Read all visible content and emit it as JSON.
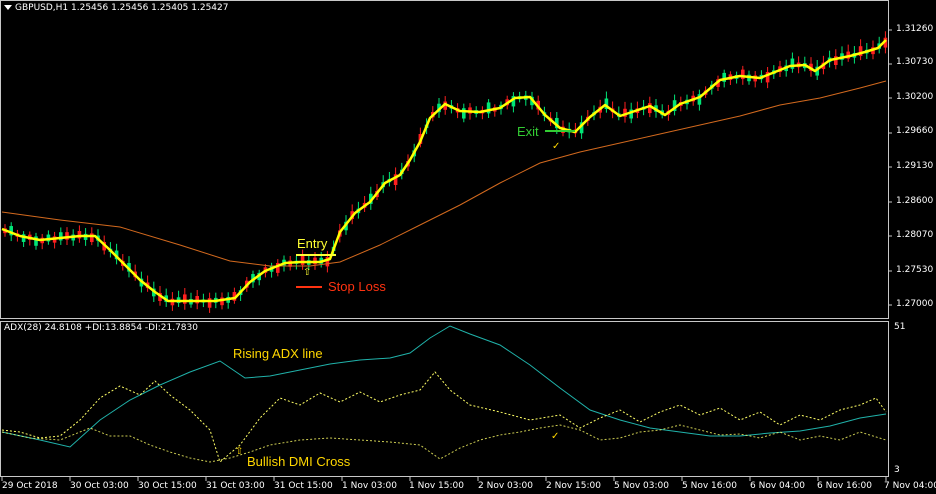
{
  "main_chart": {
    "title": "GBPUSD,H1  1.25456 1.25456 1.25405 1.25427",
    "price_labels": [
      "1.31260",
      "1.30730",
      "1.30200",
      "1.29660",
      "1.29130",
      "1.28600",
      "1.28070",
      "1.27530",
      "1.27000"
    ],
    "annotations": {
      "entry": "Entry",
      "stop_loss": "Stop Loss",
      "exit": "Exit",
      "up_arrow": "⇧",
      "checkmark": "✓"
    },
    "colors": {
      "candle_up": "#00e676",
      "candle_down": "#ff1f1f",
      "signal_line": "#ffff00",
      "slow_ma": "#d2691e",
      "entry": "#ffff33",
      "stop_loss": "#ff3311",
      "exit": "#33cc33"
    }
  },
  "indicator": {
    "title": "ADX(28) 24.8108 +DI:13.8854 -DI:21.7830",
    "scale_top": "51",
    "scale_bottom": "3",
    "annotations": {
      "rising_adx": "Rising ADX line",
      "dmi_cross": "Bullish DMI Cross",
      "up_arrow": "⇧",
      "checkmark": "✓"
    },
    "colors": {
      "adx": "#20b2aa",
      "plus_di": "#ffff66",
      "minus_di": "#ffff66",
      "annotation": "#ffd700"
    }
  },
  "time_axis": [
    "29 Oct 2018",
    "30 Oct 03:00",
    "30 Oct 15:00",
    "31 Oct 03:00",
    "31 Oct 15:00",
    "1 Nov 03:00",
    "1 Nov 15:00",
    "2 Nov 03:00",
    "2 Nov 15:00",
    "5 Nov 03:00",
    "5 Nov 16:00",
    "6 Nov 04:00",
    "6 Nov 16:00",
    "7 Nov 04:00"
  ],
  "window_menu_icon": "dropdown-triangle-icon"
}
